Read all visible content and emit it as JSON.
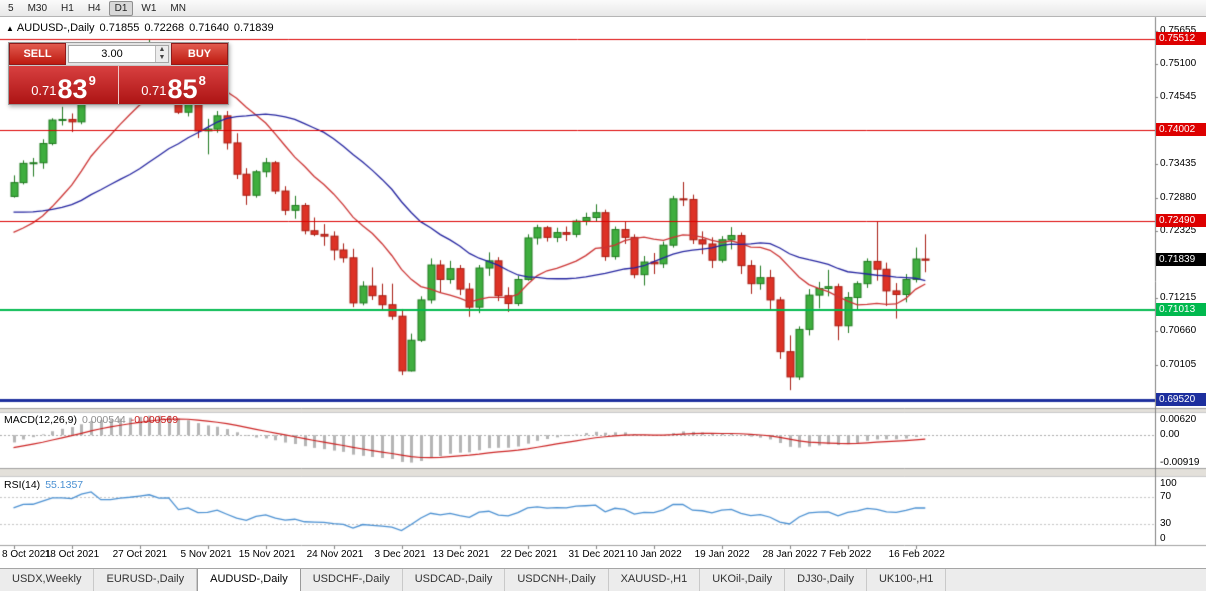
{
  "toolbar": {
    "timeframes": [
      "5",
      "M30",
      "H1",
      "H4",
      "D1",
      "W1",
      "MN"
    ],
    "active": "D1"
  },
  "chart_header": {
    "symbol": "AUDUSD-,Daily",
    "open": "0.71855",
    "high": "0.72268",
    "low": "0.71640",
    "close": "0.71839"
  },
  "trade_panel": {
    "sell_label": "SELL",
    "buy_label": "BUY",
    "volume": "3.00",
    "bid": {
      "prefix": "0.71",
      "big": "83",
      "sup": "9"
    },
    "ask": {
      "prefix": "0.71",
      "big": "85",
      "sup": "8"
    }
  },
  "colors": {
    "bull": "#3fae3f",
    "bull_border": "#1f7a1f",
    "bear": "#dd3226",
    "bear_border": "#a81c12",
    "macd_hist": "#b5b5b5",
    "macd_signal": "#cc2222",
    "rsi_line": "#4a90d2",
    "current_badge_bg": "#000000",
    "resistance": "#dd0000",
    "support_green": "#00b94e",
    "support_blue": "#1d2f9e"
  },
  "chart_data": {
    "type": "candlestick",
    "symbol": "AUDUSD",
    "timeframe": "Daily",
    "price_axis": {
      "min": 0.694,
      "max": 0.758,
      "labels": [
        "0.75655",
        "0.75100",
        "0.74545",
        "0.73435",
        "0.72880",
        "0.72325",
        "0.71215",
        "0.70660",
        "0.70105"
      ]
    },
    "hlines": [
      {
        "price": 0.75512,
        "label": "0.75512",
        "color": "#dd0000",
        "width": 1
      },
      {
        "price": 0.74002,
        "label": "0.74002",
        "color": "#dd0000",
        "width": 1
      },
      {
        "price": 0.7249,
        "label": "0.72490",
        "color": "#dd0000",
        "width": 1
      },
      {
        "price": 0.71013,
        "label": "0.71013",
        "color": "#00b94e",
        "width": 2
      },
      {
        "price": 0.6952,
        "label": "0.69520",
        "color": "#1d2f9e",
        "width": 3
      }
    ],
    "current_price": {
      "value": 0.71839,
      "label": "0.71839"
    },
    "ma": [
      {
        "period": 13,
        "color": "#cc3333"
      },
      {
        "period": 26,
        "color": "#2424a0"
      }
    ],
    "x_tick_labels": [
      {
        "i": 0,
        "label": "8 Oct 2021"
      },
      {
        "i": 6,
        "label": "18 Oct 2021"
      },
      {
        "i": 13,
        "label": "27 Oct 2021"
      },
      {
        "i": 20,
        "label": "5 Nov 2021"
      },
      {
        "i": 26,
        "label": "15 Nov 2021"
      },
      {
        "i": 33,
        "label": "24 Nov 2021"
      },
      {
        "i": 40,
        "label": "3 Dec 2021"
      },
      {
        "i": 46,
        "label": "13 Dec 2021"
      },
      {
        "i": 53,
        "label": "22 Dec 2021"
      },
      {
        "i": 60,
        "label": "31 Dec 2021"
      },
      {
        "i": 66,
        "label": "10 Jan 2022"
      },
      {
        "i": 73,
        "label": "19 Jan 2022"
      },
      {
        "i": 80,
        "label": "28 Jan 2022"
      },
      {
        "i": 86,
        "label": "7 Feb 2022"
      },
      {
        "i": 93,
        "label": "16 Feb 2022"
      }
    ],
    "candles": [
      [
        0.729,
        0.7325,
        0.7288,
        0.7313
      ],
      [
        0.7313,
        0.735,
        0.731,
        0.7345
      ],
      [
        0.7345,
        0.7354,
        0.7323,
        0.7346
      ],
      [
        0.7346,
        0.7385,
        0.7336,
        0.7378
      ],
      [
        0.7378,
        0.742,
        0.7375,
        0.7417
      ],
      [
        0.7417,
        0.7439,
        0.7408,
        0.7418
      ],
      [
        0.7418,
        0.7428,
        0.7397,
        0.7414
      ],
      [
        0.7414,
        0.7477,
        0.741,
        0.7474
      ],
      [
        0.7474,
        0.7525,
        0.747,
        0.7517
      ],
      [
        0.7517,
        0.7522,
        0.7453,
        0.7465
      ],
      [
        0.7465,
        0.7485,
        0.7459,
        0.7465
      ],
      [
        0.7465,
        0.7494,
        0.7462,
        0.7488
      ],
      [
        0.7488,
        0.7527,
        0.7481,
        0.75
      ],
      [
        0.75,
        0.7536,
        0.7492,
        0.7518
      ],
      [
        0.7518,
        0.7551,
        0.7512,
        0.7539
      ],
      [
        0.7539,
        0.7545,
        0.7498,
        0.7518
      ],
      [
        0.7518,
        0.7535,
        0.7506,
        0.7521
      ],
      [
        0.7521,
        0.7526,
        0.7427,
        0.743
      ],
      [
        0.743,
        0.747,
        0.7423,
        0.7448
      ],
      [
        0.7448,
        0.7457,
        0.7387,
        0.7399
      ],
      [
        0.7399,
        0.7419,
        0.736,
        0.7402
      ],
      [
        0.7402,
        0.7432,
        0.7396,
        0.7424
      ],
      [
        0.7424,
        0.7432,
        0.7368,
        0.7379
      ],
      [
        0.7379,
        0.7395,
        0.7319,
        0.7327
      ],
      [
        0.7327,
        0.7337,
        0.7276,
        0.7292
      ],
      [
        0.7292,
        0.7334,
        0.7288,
        0.7331
      ],
      [
        0.7331,
        0.7354,
        0.7322,
        0.7346
      ],
      [
        0.7346,
        0.7349,
        0.7294,
        0.7299
      ],
      [
        0.7299,
        0.7307,
        0.7259,
        0.7267
      ],
      [
        0.7267,
        0.7291,
        0.7253,
        0.7275
      ],
      [
        0.7275,
        0.7279,
        0.7227,
        0.7233
      ],
      [
        0.7233,
        0.7255,
        0.7224,
        0.7227
      ],
      [
        0.7227,
        0.7244,
        0.7208,
        0.7224
      ],
      [
        0.7224,
        0.7232,
        0.7184,
        0.7201
      ],
      [
        0.7201,
        0.7212,
        0.718,
        0.7188
      ],
      [
        0.7188,
        0.7203,
        0.7106,
        0.7113
      ],
      [
        0.7113,
        0.7149,
        0.7109,
        0.7141
      ],
      [
        0.7141,
        0.7172,
        0.7118,
        0.7125
      ],
      [
        0.7125,
        0.7145,
        0.71,
        0.711
      ],
      [
        0.711,
        0.7145,
        0.7085,
        0.7091
      ],
      [
        0.7091,
        0.7103,
        0.6993,
        0.7
      ],
      [
        0.7,
        0.7062,
        0.6999,
        0.7051
      ],
      [
        0.7051,
        0.7124,
        0.7048,
        0.7118
      ],
      [
        0.7118,
        0.7187,
        0.7112,
        0.7176
      ],
      [
        0.7176,
        0.7184,
        0.713,
        0.7152
      ],
      [
        0.7152,
        0.7183,
        0.7145,
        0.717
      ],
      [
        0.717,
        0.7176,
        0.7126,
        0.7136
      ],
      [
        0.7136,
        0.7146,
        0.709,
        0.7106
      ],
      [
        0.7106,
        0.7176,
        0.7096,
        0.7171
      ],
      [
        0.7171,
        0.7197,
        0.7158,
        0.7183
      ],
      [
        0.7183,
        0.7189,
        0.7116,
        0.7125
      ],
      [
        0.7125,
        0.7139,
        0.7098,
        0.7112
      ],
      [
        0.7112,
        0.7158,
        0.7108,
        0.7152
      ],
      [
        0.7152,
        0.7227,
        0.715,
        0.7221
      ],
      [
        0.7221,
        0.7243,
        0.721,
        0.7238
      ],
      [
        0.7238,
        0.7241,
        0.7215,
        0.7222
      ],
      [
        0.7222,
        0.7238,
        0.7214,
        0.723
      ],
      [
        0.723,
        0.724,
        0.7216,
        0.7227
      ],
      [
        0.7227,
        0.7252,
        0.7222,
        0.7249
      ],
      [
        0.7249,
        0.7263,
        0.7242,
        0.7255
      ],
      [
        0.7255,
        0.7277,
        0.7248,
        0.7263
      ],
      [
        0.7263,
        0.7268,
        0.7183,
        0.719
      ],
      [
        0.719,
        0.724,
        0.7185,
        0.7235
      ],
      [
        0.7235,
        0.7248,
        0.7211,
        0.7222
      ],
      [
        0.7222,
        0.7227,
        0.7154,
        0.716
      ],
      [
        0.716,
        0.7191,
        0.7142,
        0.7181
      ],
      [
        0.7181,
        0.7196,
        0.7161,
        0.7178
      ],
      [
        0.7178,
        0.7215,
        0.7171,
        0.7209
      ],
      [
        0.7209,
        0.7291,
        0.7205,
        0.7286
      ],
      [
        0.7286,
        0.7314,
        0.7274,
        0.7285
      ],
      [
        0.7285,
        0.7293,
        0.7211,
        0.7218
      ],
      [
        0.7218,
        0.7232,
        0.7194,
        0.7211
      ],
      [
        0.7211,
        0.7222,
        0.7171,
        0.7184
      ],
      [
        0.7184,
        0.7224,
        0.718,
        0.7218
      ],
      [
        0.7218,
        0.7239,
        0.7202,
        0.7225
      ],
      [
        0.7225,
        0.723,
        0.7161,
        0.7175
      ],
      [
        0.7175,
        0.7184,
        0.7128,
        0.7145
      ],
      [
        0.7145,
        0.7175,
        0.7135,
        0.7155
      ],
      [
        0.7155,
        0.7168,
        0.7103,
        0.7118
      ],
      [
        0.7118,
        0.7123,
        0.702,
        0.7032
      ],
      [
        0.7032,
        0.7059,
        0.6968,
        0.699
      ],
      [
        0.699,
        0.7074,
        0.6985,
        0.7069
      ],
      [
        0.7069,
        0.7136,
        0.7059,
        0.7126
      ],
      [
        0.7126,
        0.7148,
        0.7104,
        0.7137
      ],
      [
        0.7137,
        0.7168,
        0.7124,
        0.714
      ],
      [
        0.714,
        0.7145,
        0.7051,
        0.7075
      ],
      [
        0.7075,
        0.7131,
        0.7063,
        0.7122
      ],
      [
        0.7122,
        0.7149,
        0.71,
        0.7145
      ],
      [
        0.7145,
        0.7187,
        0.7138,
        0.7182
      ],
      [
        0.7182,
        0.7249,
        0.715,
        0.7169
      ],
      [
        0.7169,
        0.718,
        0.7108,
        0.7133
      ],
      [
        0.7133,
        0.7146,
        0.7087,
        0.7127
      ],
      [
        0.7127,
        0.7161,
        0.7114,
        0.7152
      ],
      [
        0.7152,
        0.7205,
        0.7147,
        0.7186
      ],
      [
        0.7186,
        0.7227,
        0.7164,
        0.7184
      ]
    ],
    "macd": {
      "label": "MACD(12,26,9)",
      "value": "0.000544",
      "signal_value": "-0.000569",
      "params": [
        12,
        26,
        9
      ],
      "scale_labels": {
        "top": "0.00620",
        "zero": "0.00",
        "bottom": "-0.00919"
      }
    },
    "rsi": {
      "label": "RSI(14)",
      "value": "55.1357",
      "period": 14,
      "scale_labels": [
        "100",
        "70",
        "30",
        "0"
      ]
    }
  },
  "tabs": [
    "USDX,Weekly",
    "EURUSD-,Daily",
    "AUDUSD-,Daily",
    "USDCHF-,Daily",
    "USDCAD-,Daily",
    "USDCNH-,Daily",
    "XAUUSD-,H1",
    "UKOil-,Daily",
    "DJ30-,Daily",
    "UK100-,H1"
  ],
  "active_tab": "AUDUSD-,Daily"
}
